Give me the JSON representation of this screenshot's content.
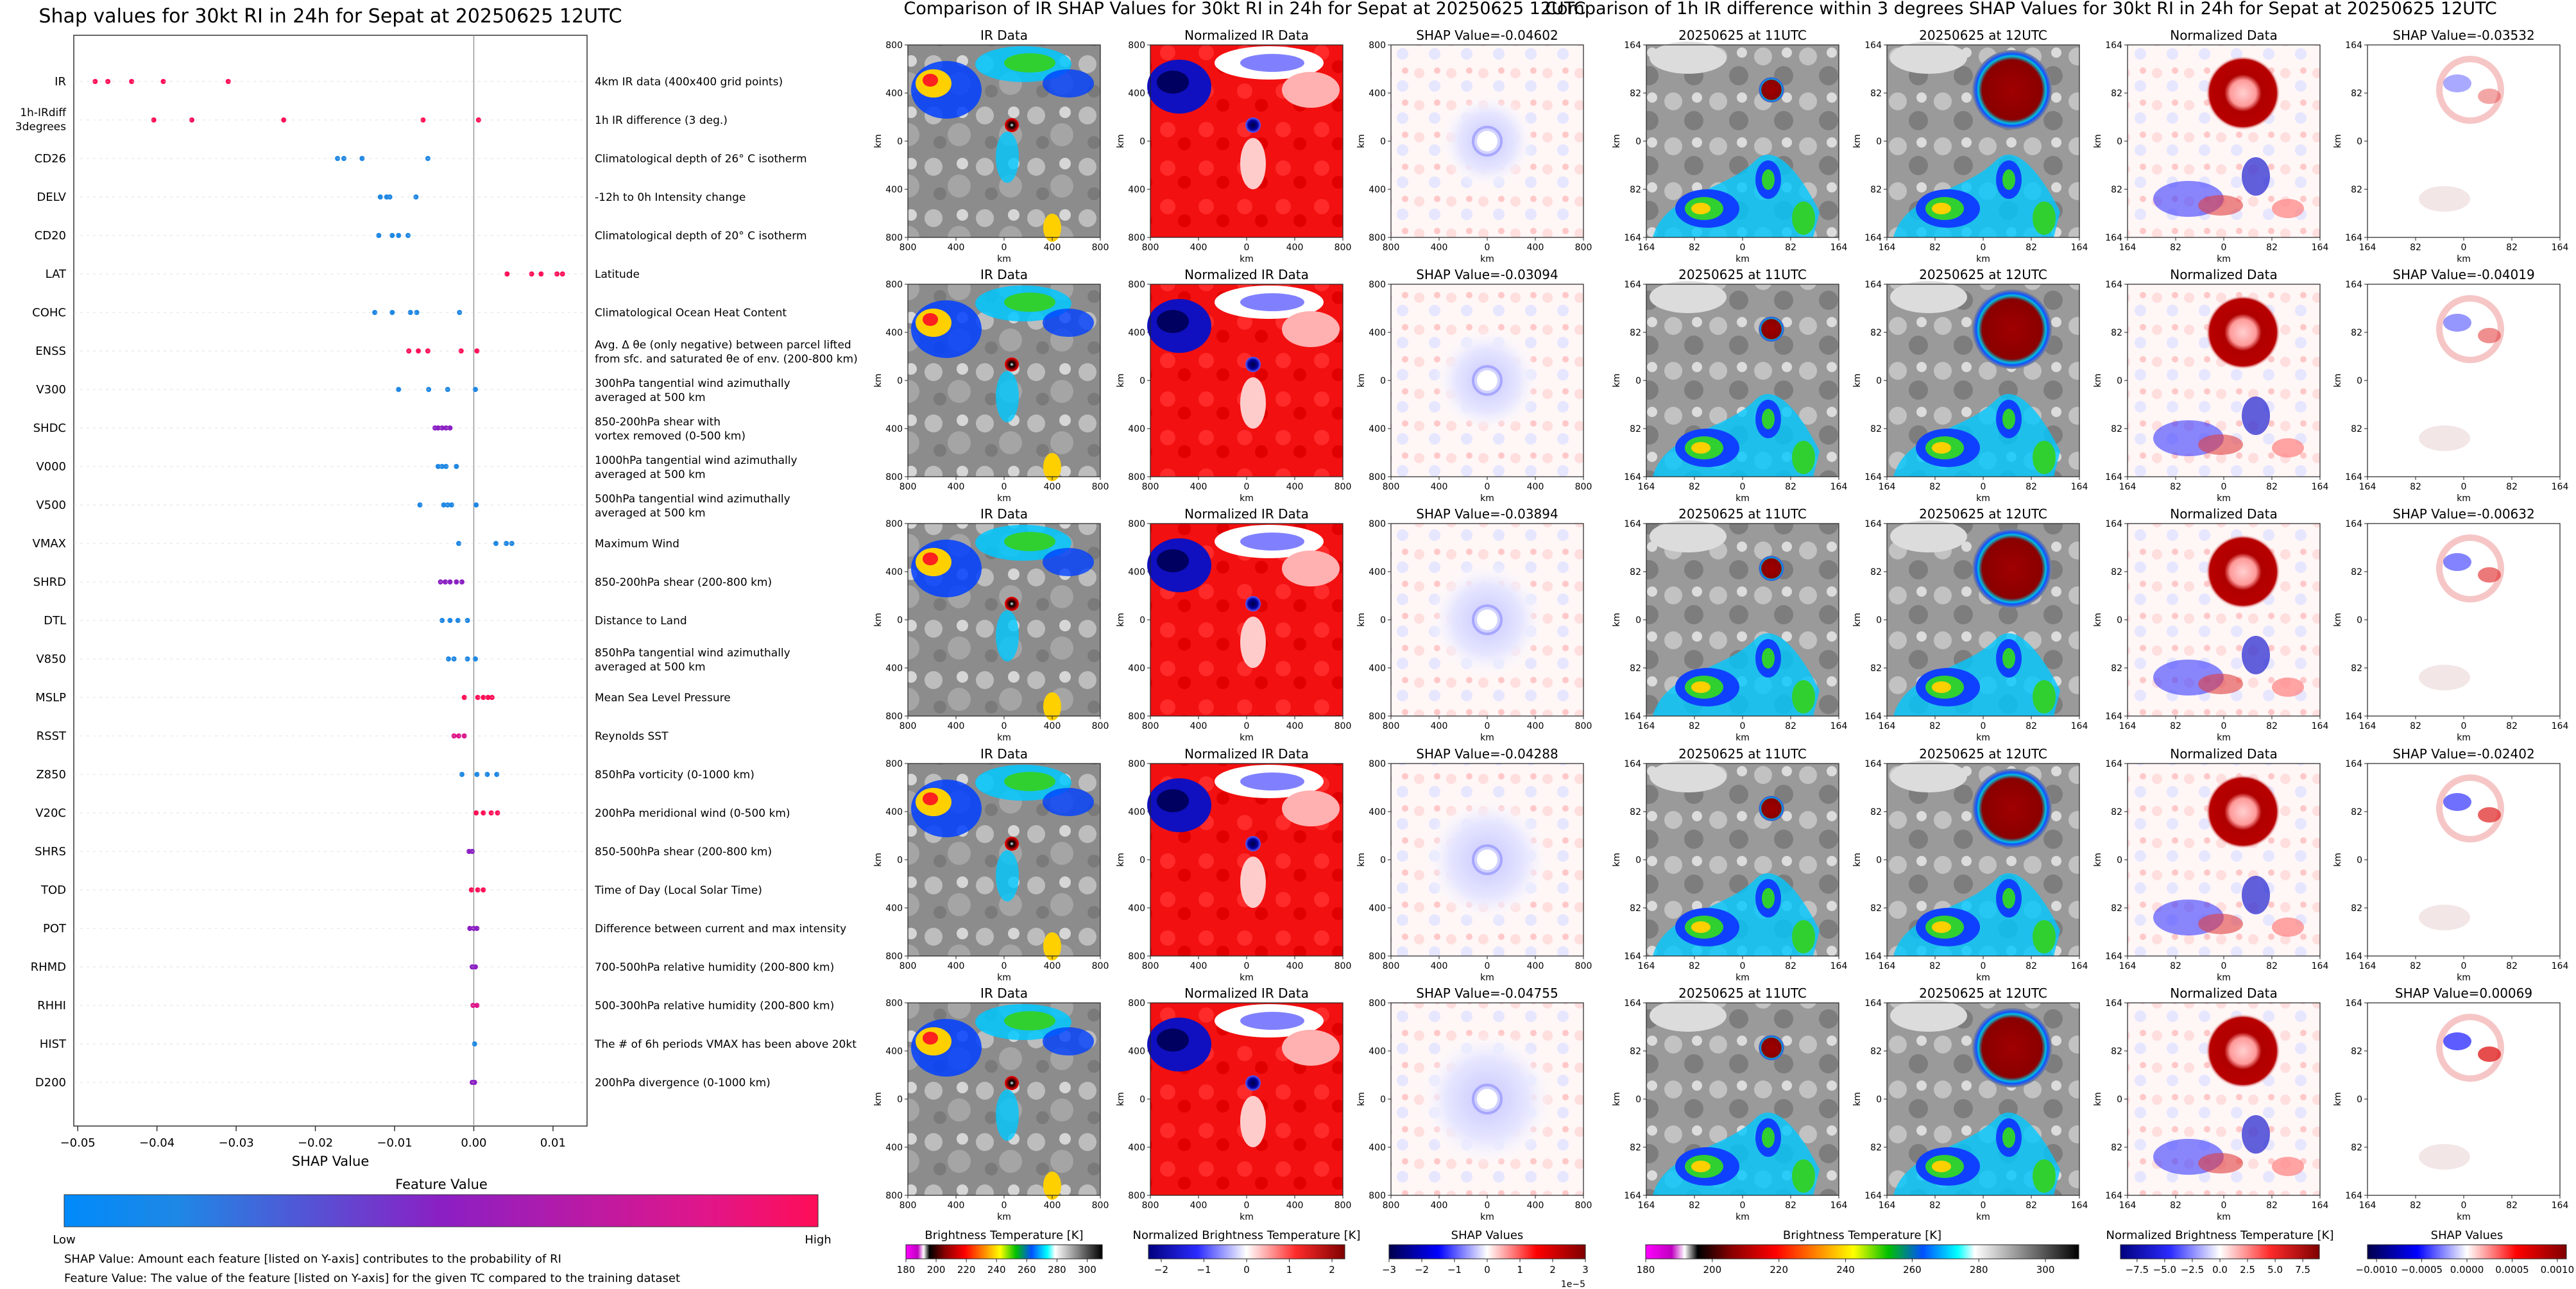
{
  "left_panel": {
    "title": "Shap values for 30kt RI in 24h for Sepat at 20250625 12UTC",
    "xlabel": "SHAP Value",
    "xticks": [
      -0.05,
      -0.04,
      -0.03,
      -0.02,
      -0.01,
      0.0,
      0.01
    ],
    "xtick_labels": [
      "−0.05",
      "−0.04",
      "−0.03",
      "−0.02",
      "−0.01",
      "0.00",
      "0.01"
    ],
    "colorbar_title": "Feature Value",
    "colorbar_low": "Low",
    "colorbar_high": "High",
    "note1": "SHAP Value: Amount each feature [listed on Y-axis] contributes to the probability of RI",
    "note2": "Feature Value: The value of the feature [listed on Y-axis] for the given TC compared to the training dataset"
  },
  "chart_data": [
    {
      "type": "scatter",
      "title": "Shap values for 30kt RI in 24h for Sepat at 20250625 12UTC",
      "xlabel": "SHAP Value",
      "xlim": [
        -0.0505,
        0.0143
      ],
      "colors": {
        "low": "#1e88e5",
        "mid": "#8b1fc4",
        "high": "#ff0d57"
      },
      "features": [
        {
          "code": "IR",
          "desc": [
            "4km IR data (400x400 grid points)"
          ],
          "values": [
            -0.0478,
            -0.0462,
            -0.0432,
            -0.0392,
            -0.031
          ],
          "color": "#ff0d57"
        },
        {
          "code": "1h-IRdiff\n3degrees",
          "desc": [
            "1h IR difference (3 deg.)"
          ],
          "values": [
            -0.0404,
            -0.0356,
            -0.024,
            -0.0064,
            0.0006
          ],
          "color": "#ff0d57"
        },
        {
          "code": "CD26",
          "desc": [
            "Climatological depth of 26° C isotherm"
          ],
          "values": [
            -0.0172,
            -0.0164,
            -0.0141,
            -0.0058
          ],
          "color": "#1e88e5"
        },
        {
          "code": "DELV",
          "desc": [
            "-12h to 0h Intensity change"
          ],
          "values": [
            -0.0118,
            -0.011,
            -0.0106,
            -0.0073
          ],
          "color": "#1e88e5"
        },
        {
          "code": "CD20",
          "desc": [
            "Climatological depth of 20° C isotherm"
          ],
          "values": [
            -0.012,
            -0.0103,
            -0.0095,
            -0.0083
          ],
          "color": "#1e88e5"
        },
        {
          "code": "LAT",
          "desc": [
            "Latitude"
          ],
          "values": [
            0.0042,
            0.0073,
            0.0085,
            0.0105,
            0.0112
          ],
          "color": "#ff0d57"
        },
        {
          "code": "COHC",
          "desc": [
            "Climatological Ocean Heat Content"
          ],
          "values": [
            -0.0125,
            -0.0103,
            -0.008,
            -0.0072,
            -0.0018
          ],
          "color": "#1e88e5"
        },
        {
          "code": "ENSS",
          "desc": [
            "Avg. Δ θe (only negative) between parcel lifted",
            "from sfc. and saturated θe of env. (200-800 km)"
          ],
          "values": [
            -0.0082,
            -0.007,
            -0.0058,
            -0.0016,
            0.0004
          ],
          "color": "#ff0d57"
        },
        {
          "code": "V300",
          "desc": [
            "300hPa tangential wind azimuthally",
            "averaged at 500 km"
          ],
          "values": [
            -0.0095,
            -0.0057,
            -0.0033,
            0.0002
          ],
          "color": "#1e88e5"
        },
        {
          "code": "SHDC",
          "desc": [
            "850-200hPa shear with",
            "vortex removed (0-500 km)"
          ],
          "values": [
            -0.0049,
            -0.0045,
            -0.004,
            -0.0035,
            -0.003
          ],
          "color": "#8b1fc4"
        },
        {
          "code": "V000",
          "desc": [
            "1000hPa tangential wind azimuthally",
            "averaged at 500 km"
          ],
          "values": [
            -0.0045,
            -0.004,
            -0.0035,
            -0.0022
          ],
          "color": "#1e88e5"
        },
        {
          "code": "V500",
          "desc": [
            "500hPa tangential wind azimuthally",
            "averaged at 500 km"
          ],
          "values": [
            -0.0068,
            -0.0038,
            -0.0033,
            -0.0028,
            0.0003
          ],
          "color": "#1e88e5"
        },
        {
          "code": "VMAX",
          "desc": [
            "Maximum Wind"
          ],
          "values": [
            -0.0019,
            0.0028,
            0.0041,
            0.0048
          ],
          "color": "#1e88e5"
        },
        {
          "code": "SHRD",
          "desc": [
            "850-200hPa shear (200-800 km)"
          ],
          "values": [
            -0.0042,
            -0.0036,
            -0.003,
            -0.0022,
            -0.0015
          ],
          "color": "#8b1fc4"
        },
        {
          "code": "DTL",
          "desc": [
            "Distance to Land"
          ],
          "values": [
            -0.004,
            -0.003,
            -0.002,
            -0.0008
          ],
          "color": "#1e88e5"
        },
        {
          "code": "V850",
          "desc": [
            "850hPa tangential wind azimuthally",
            "averaged at 500 km"
          ],
          "values": [
            -0.0032,
            -0.0025,
            -0.0008,
            0.0002
          ],
          "color": "#1e88e5"
        },
        {
          "code": "MSLP",
          "desc": [
            "Mean Sea Level Pressure"
          ],
          "values": [
            -0.0012,
            0.0005,
            0.0012,
            0.0018,
            0.0023
          ],
          "color": "#ff0d57"
        },
        {
          "code": "RSST",
          "desc": [
            "Reynolds SST"
          ],
          "values": [
            -0.0025,
            -0.0019,
            -0.0012
          ],
          "color": "#e0168a"
        },
        {
          "code": "Z850",
          "desc": [
            "850hPa vorticity (0-1000 km)"
          ],
          "values": [
            -0.0015,
            0.0004,
            0.0017,
            0.0029
          ],
          "color": "#1e88e5"
        },
        {
          "code": "V20C",
          "desc": [
            "200hPa meridional wind (0-500 km)"
          ],
          "values": [
            0.0003,
            0.0012,
            0.0022,
            0.003
          ],
          "color": "#ff0d57"
        },
        {
          "code": "SHRS",
          "desc": [
            "850-500hPa shear (200-800 km)"
          ],
          "values": [
            -0.0006,
            -0.0002
          ],
          "color": "#8b1fc4"
        },
        {
          "code": "TOD",
          "desc": [
            "Time of Day (Local Solar Time)"
          ],
          "values": [
            -0.0003,
            0.0005,
            0.0012
          ],
          "color": "#ff0d57"
        },
        {
          "code": "POT",
          "desc": [
            "Difference between current and max intensity"
          ],
          "values": [
            -0.0005,
            0.0,
            0.0004
          ],
          "color": "#8b1fc4"
        },
        {
          "code": "RHMD",
          "desc": [
            "700-500hPa relative humidity (200-800 km)"
          ],
          "values": [
            -0.0002,
            0.0002
          ],
          "color": "#8b1fc4"
        },
        {
          "code": "RHHI",
          "desc": [
            "500-300hPa relative humidity (200-800 km)"
          ],
          "values": [
            -0.0001,
            0.0004
          ],
          "color": "#e0168a"
        },
        {
          "code": "HIST",
          "desc": [
            "The # of 6h periods VMAX has been above 20kt"
          ],
          "values": [
            0.0001
          ],
          "color": "#1e88e5"
        },
        {
          "code": "D200",
          "desc": [
            "200hPa divergence (0-1000 km)"
          ],
          "values": [
            -0.0002,
            0.0001
          ],
          "color": "#8b1fc4"
        }
      ]
    },
    {
      "type": "heatmap",
      "title": "Comparison of IR SHAP Values for 30kt RI in 24h for Sepat at 20250625 12UTC",
      "column_titles": [
        "IR Data",
        "Normalized IR Data"
      ],
      "shap_titles": [
        "SHAP Value=-0.04602",
        "SHAP Value=-0.03094",
        "SHAP Value=-0.03894",
        "SHAP Value=-0.04288",
        "SHAP Value=-0.04755"
      ],
      "axis_label": "km",
      "xticks": [
        "800",
        "400",
        "0",
        "400",
        "800"
      ],
      "yticks": [
        "800",
        "400",
        "0",
        "400",
        "800"
      ]
    },
    {
      "type": "heatmap",
      "title": "Comparison of 1h IR difference within 3 degrees SHAP Values for 30kt RI in 24h for Sepat at 20250625 12UTC",
      "column_titles": [
        "20250625 at 11UTC",
        "20250625 at 12UTC",
        "Normalized Data"
      ],
      "shap_titles": [
        "SHAP Value=-0.03532",
        "SHAP Value=-0.04019",
        "SHAP Value=-0.00632",
        "SHAP Value=-0.02402",
        "SHAP Value=0.00069"
      ],
      "axis_label": "km",
      "xticks": [
        "164",
        "82",
        "0",
        "82",
        "164"
      ],
      "yticks": [
        "164",
        "82",
        "0",
        "82",
        "164"
      ]
    }
  ],
  "colorbars": [
    {
      "label": "Brightness Temperature [K]",
      "ticks": [
        "180",
        "200",
        "220",
        "240",
        "260",
        "280",
        "300"
      ],
      "min": 180,
      "max": 310
    },
    {
      "label": "Normalized Brightness Temperature [K]",
      "ticks": [
        "−2",
        "−1",
        "0",
        "1",
        "2"
      ],
      "min": -2.3,
      "max": 2.3
    },
    {
      "label": "SHAP Values",
      "ticks": [
        "−3",
        "−2",
        "−1",
        "0",
        "1",
        "2",
        "3"
      ],
      "min": -3,
      "max": 3,
      "offset": "1e−5"
    },
    {
      "label": "Brightness Temperature [K]",
      "ticks": [
        "180",
        "200",
        "220",
        "240",
        "260",
        "280",
        "300"
      ],
      "min": 180,
      "max": 310
    },
    {
      "label": "Normalized Brightness Temperature [K]",
      "ticks": [
        "−7.5",
        "−5.0",
        "−2.5",
        "0.0",
        "2.5",
        "5.0",
        "7.5"
      ],
      "min": -9,
      "max": 9
    },
    {
      "label": "SHAP Values",
      "ticks": [
        "−0.0010",
        "−0.0005",
        "0.0000",
        "0.0005",
        "0.0010"
      ],
      "min": -0.0011,
      "max": 0.0011
    }
  ],
  "colors": {
    "ir_cold": "#8b0000",
    "ir_red": "#ff1a1a",
    "shap_neg": "#2020c0",
    "shap_pos": "#c00000"
  }
}
